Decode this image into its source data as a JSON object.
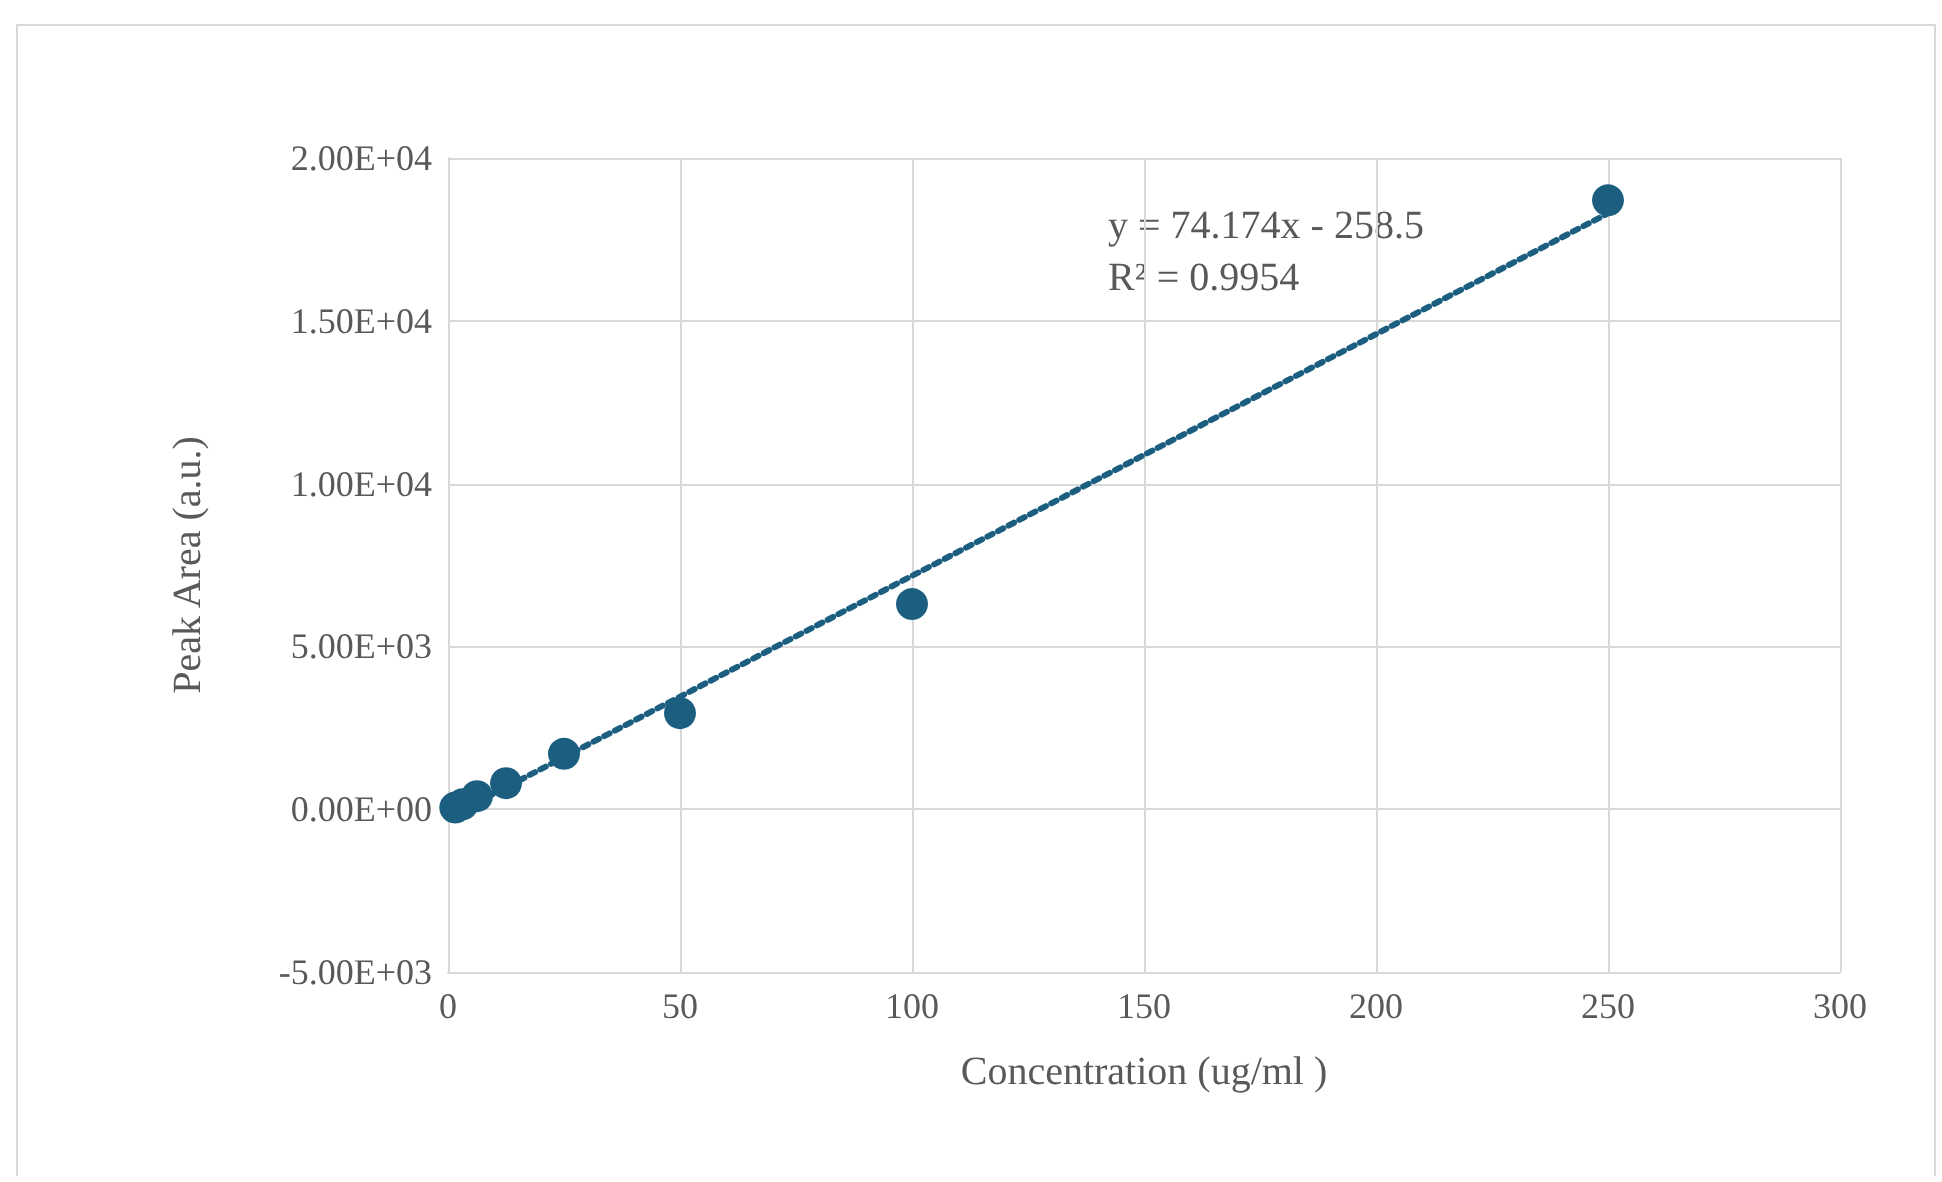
{
  "chart_data": {
    "type": "scatter",
    "xlabel": "Concentration (ug/ml )",
    "ylabel": "Peak Area (a.u.)",
    "series": [
      {
        "color": "#1b5e80",
        "marker": "circle",
        "x": [
          1.5625,
          3.125,
          6.25,
          12.5,
          25,
          50,
          100,
          250
        ],
        "values": [
          50,
          150,
          400,
          800,
          1700,
          2950,
          6300,
          18700
        ]
      },
      {
        "type": "line",
        "color": "#1b5e80",
        "line_style": "dotted",
        "marker": "none",
        "x": [
          1.5625,
          250
        ],
        "values": [
          -140,
          18300
        ]
      }
    ],
    "annotations": [
      "y = 74.174x - 258.5",
      "R² = 0.9954"
    ],
    "xlim": [
      0,
      300
    ],
    "xticks": [
      0,
      50,
      100,
      150,
      200,
      250,
      300
    ],
    "ylim": [
      -5000,
      20000
    ],
    "yticks": [
      {
        "value": -5000,
        "label": "-5.00E+03"
      },
      {
        "value": 0,
        "label": "0.00E+00"
      },
      {
        "value": 5000,
        "label": "5.00E+03"
      },
      {
        "value": 10000,
        "label": "1.00E+04"
      },
      {
        "value": 15000,
        "label": "1.50E+04"
      },
      {
        "value": 20000,
        "label": "2.00E+04"
      }
    ],
    "grid": true
  }
}
